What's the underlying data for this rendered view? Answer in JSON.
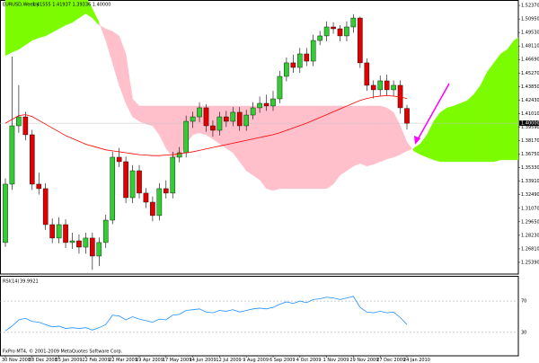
{
  "chart_data": {
    "type": "candlestick",
    "title": "EURUSD,Weekly",
    "subtitle": "1.41555 1.41937 1.39336 1.40000",
    "footer": "FxPro MT4, © 2001-2009 MetaQuotes Software Corp.",
    "categories": [
      "30 Nov 2008",
      null,
      null,
      null,
      "28 Dec 2008",
      null,
      null,
      null,
      "25 Jan 2009",
      null,
      null,
      null,
      "22 Feb 2009",
      null,
      null,
      null,
      "22 Mar 2009",
      null,
      null,
      null,
      "19 Apr 2009",
      null,
      null,
      null,
      "17 May 2009",
      null,
      null,
      null,
      "14 Jun 2009",
      null,
      null,
      null,
      "12 Jul 2009",
      null,
      null,
      null,
      "9 Aug 2009",
      null,
      null,
      null,
      "6 Sep 2009",
      null,
      null,
      null,
      "4 Oct 2009",
      null,
      null,
      null,
      "1 Nov 2009",
      null,
      null,
      null,
      "29 Nov 2009",
      null,
      null,
      null,
      "27 Dec 2009",
      null,
      null,
      null,
      "24 Jan 2010",
      null,
      null,
      null,
      null,
      null,
      null,
      null,
      null,
      null,
      null,
      null,
      null,
      null,
      null,
      null,
      null,
      null,
      null,
      null,
      null
    ],
    "open": [
      1.2747,
      1.336,
      1.3973,
      1.4067,
      1.3879,
      1.336,
      1.3313,
      1.2935,
      1.2794,
      1.2935,
      1.2747,
      1.2765,
      1.2699,
      1.2794,
      1.2605,
      1.2747,
      1.2982,
      1.3643,
      1.3596,
      1.3218,
      1.3501,
      1.3266,
      1.3171,
      1.303,
      1.3313,
      1.3266,
      1.3643,
      1.369,
      1.402,
      1.4067,
      1.4162,
      1.3973,
      1.3926,
      1.4067,
      1.402,
      1.4115,
      1.3973,
      1.4086,
      1.4162,
      1.4209,
      1.4181,
      1.4256,
      1.4492,
      1.4634,
      1.4586,
      1.4728,
      1.4652,
      1.4869,
      1.4917,
      1.5011,
      1.4992,
      1.4917,
      1.5011,
      1.5105,
      1.4634,
      1.4398,
      1.4351,
      1.4445,
      1.4351,
      1.4398,
      1.41555,
      null,
      null,
      null,
      null,
      null,
      null,
      null,
      null,
      null,
      null,
      null,
      null,
      null,
      null,
      null,
      null,
      null,
      null,
      null,
      null
    ],
    "high": [
      1.342,
      1.47,
      1.44,
      1.412,
      1.393,
      1.348,
      1.337,
      1.3,
      1.301,
      1.299,
      1.285,
      1.283,
      1.285,
      1.285,
      1.28,
      1.304,
      1.37,
      1.374,
      1.365,
      1.356,
      1.356,
      1.332,
      1.323,
      1.337,
      1.34,
      1.37,
      1.375,
      1.408,
      1.412,
      1.422,
      1.42,
      1.403,
      1.412,
      1.413,
      1.417,
      1.417,
      1.414,
      1.422,
      1.428,
      1.43,
      1.434,
      1.455,
      1.469,
      1.472,
      1.479,
      1.479,
      1.493,
      1.497,
      1.507,
      1.506,
      1.503,
      1.507,
      1.5145,
      1.512,
      1.468,
      1.445,
      1.45,
      1.451,
      1.445,
      1.445,
      1.41937,
      null,
      null,
      null,
      null,
      null,
      null,
      null,
      null,
      null,
      null,
      null,
      null,
      null,
      null,
      null,
      null,
      null,
      null,
      null,
      null
    ],
    "low": [
      1.27,
      1.33,
      1.39,
      1.382,
      1.33,
      1.325,
      1.288,
      1.274,
      1.274,
      1.269,
      1.268,
      1.263,
      1.263,
      1.246,
      1.25,
      1.269,
      1.294,
      1.354,
      1.316,
      1.316,
      1.321,
      1.311,
      1.297,
      1.298,
      1.321,
      1.321,
      1.359,
      1.364,
      1.395,
      1.401,
      1.391,
      1.386,
      1.387,
      1.396,
      1.397,
      1.392,
      1.392,
      1.404,
      1.411,
      1.413,
      1.413,
      1.421,
      1.444,
      1.453,
      1.453,
      1.46,
      1.46,
      1.482,
      1.486,
      1.494,
      1.486,
      1.486,
      1.495,
      1.458,
      1.434,
      1.426,
      1.429,
      1.429,
      1.429,
      1.41,
      1.39336,
      null,
      null,
      null,
      null,
      null,
      null,
      null,
      null,
      null,
      null,
      null,
      null,
      null,
      null,
      null,
      null,
      null,
      null,
      null,
      null
    ],
    "close": [
      1.336,
      1.3973,
      1.4067,
      1.3879,
      1.336,
      1.3313,
      1.2935,
      1.2794,
      1.2935,
      1.2747,
      1.2765,
      1.2699,
      1.2794,
      1.2605,
      1.2747,
      1.2982,
      1.3643,
      1.3596,
      1.3218,
      1.3501,
      1.3266,
      1.3171,
      1.303,
      1.3313,
      1.3266,
      1.3643,
      1.369,
      1.402,
      1.4067,
      1.4162,
      1.3973,
      1.3926,
      1.4067,
      1.402,
      1.4115,
      1.3973,
      1.4086,
      1.4162,
      1.4209,
      1.4181,
      1.4256,
      1.4492,
      1.4634,
      1.4586,
      1.4728,
      1.4652,
      1.4869,
      1.4917,
      1.5011,
      1.4992,
      1.4917,
      1.5011,
      1.5105,
      1.4634,
      1.4398,
      1.4351,
      1.4445,
      1.4351,
      1.4398,
      1.4162,
      1.4,
      null,
      null,
      null,
      null,
      null,
      null,
      null,
      null,
      null,
      null,
      null,
      null,
      null,
      null,
      null,
      null,
      null,
      null,
      null,
      null
    ],
    "up_color": "#32cd32",
    "down_color": "#e00000",
    "ma": {
      "color": "#ff0000",
      "values": [
        1.4,
        1.404,
        1.408,
        1.409,
        1.407,
        1.403,
        1.399,
        1.395,
        1.391,
        1.387,
        1.384,
        1.381,
        1.378,
        1.376,
        1.374,
        1.372,
        1.371,
        1.37,
        1.369,
        1.368,
        1.367,
        1.3665,
        1.366,
        1.366,
        1.3665,
        1.367,
        1.368,
        1.369,
        1.37,
        1.3715,
        1.373,
        1.3745,
        1.376,
        1.3775,
        1.379,
        1.3805,
        1.382,
        1.3835,
        1.385,
        1.3865,
        1.388,
        1.39,
        1.3925,
        1.395,
        1.3975,
        1.4,
        1.403,
        1.406,
        1.409,
        1.412,
        1.415,
        1.418,
        1.421,
        1.424,
        1.426,
        1.4275,
        1.4285,
        1.429,
        1.4285,
        1.4275,
        1.426,
        null,
        null,
        null,
        null,
        null,
        null,
        null,
        null,
        null,
        null,
        null,
        null,
        null,
        null,
        null,
        null,
        null,
        null,
        null,
        null
      ]
    },
    "cloud": {
      "up_color": "#7cfc00",
      "down_color": "#ffc0cb",
      "span_a": [
        1.5483,
        1.5483,
        1.5483,
        1.5483,
        1.5483,
        1.5483,
        1.5483,
        1.5464,
        1.5436,
        1.5407,
        1.5388,
        1.5369,
        1.5341,
        1.52,
        1.5058,
        1.4869,
        1.4634,
        1.4398,
        1.4209,
        1.4067,
        1.402,
        1.3992,
        1.3973,
        1.3879,
        1.3737,
        1.3643,
        1.3643,
        1.3784,
        1.3879,
        1.3898,
        1.3879,
        1.3832,
        1.3784,
        1.3737,
        1.369,
        1.3596,
        1.3501,
        1.3454,
        1.3407,
        1.3313,
        1.3294,
        1.3313,
        1.3313,
        1.3313,
        1.3313,
        1.3313,
        1.3313,
        1.3313,
        1.3313,
        1.336,
        1.3454,
        1.3501,
        1.3549,
        1.3577,
        1.3549,
        1.3567,
        1.3596,
        1.3624,
        1.3643,
        1.3671,
        1.3709,
        1.3737,
        1.3784,
        1.3879,
        1.402,
        1.4115,
        1.4162,
        1.4181,
        1.4209,
        1.4237,
        1.4303,
        1.4398,
        1.4539,
        1.4634,
        1.4728,
        1.4775,
        1.4869,
        1.4917,
        1.5011,
        1.5058,
        1.5105
      ],
      "span_b": [
        1.4709,
        1.4747,
        1.4775,
        1.4822,
        1.4869,
        1.4898,
        1.4917,
        1.4954,
        1.4992,
        1.503,
        1.5058,
        1.5105,
        1.5152,
        1.5105,
        1.503,
        1.4992,
        1.4964,
        1.4917,
        1.4728,
        1.4256,
        1.4181,
        1.4181,
        1.4181,
        1.4181,
        1.4181,
        1.4181,
        1.4181,
        1.4181,
        1.4181,
        1.4181,
        1.4181,
        1.4181,
        1.4181,
        1.4181,
        1.4181,
        1.4181,
        1.4181,
        1.4181,
        1.4181,
        1.4181,
        1.4181,
        1.4181,
        1.4181,
        1.4181,
        1.4181,
        1.4181,
        1.4181,
        1.4181,
        1.4181,
        1.4181,
        1.4181,
        1.4181,
        1.4181,
        1.4181,
        1.4181,
        1.4181,
        1.4181,
        1.4162,
        1.4115,
        1.3973,
        1.3803,
        1.3709,
        1.3671,
        1.3643,
        1.3615,
        1.3596,
        1.3596,
        1.3596,
        1.3596,
        1.3596,
        1.3596,
        1.3596,
        1.3596,
        1.3596,
        1.3615,
        1.3615,
        1.3615,
        1.3615,
        1.3615,
        1.3615,
        1.3615
      ]
    },
    "ylim": [
      1.2416,
      1.5294
    ],
    "yticks": [
      {
        "value": 1.5237,
        "label": "1.52370"
      },
      {
        "value": 1.5095,
        "label": "1.50950"
      },
      {
        "value": 1.4953,
        "label": "1.49530"
      },
      {
        "value": 1.4811,
        "label": "1.48110"
      },
      {
        "value": 1.4669,
        "label": "1.46690"
      },
      {
        "value": 1.4527,
        "label": "1.45270"
      },
      {
        "value": 1.4385,
        "label": "1.43850"
      },
      {
        "value": 1.4243,
        "label": "1.42430"
      },
      {
        "value": 1.4101,
        "label": "1.41010"
      },
      {
        "value": 1.3959,
        "label": "1.39590"
      },
      {
        "value": 1.3817,
        "label": "1.38170"
      },
      {
        "value": 1.3675,
        "label": "1.36750"
      },
      {
        "value": 1.3533,
        "label": "1.35330"
      },
      {
        "value": 1.3391,
        "label": "1.33910"
      },
      {
        "value": 1.3249,
        "label": "1.32490"
      },
      {
        "value": 1.3107,
        "label": "1.31070"
      },
      {
        "value": 1.2965,
        "label": "1.29650"
      },
      {
        "value": 1.2823,
        "label": "1.28230"
      },
      {
        "value": 1.2681,
        "label": "1.26810"
      },
      {
        "value": 1.2539,
        "label": "1.25390"
      }
    ],
    "last_price": {
      "value": 1.4,
      "label": "1.40000"
    },
    "rsi": {
      "name": "RSI(14)",
      "color": "#1e90ff",
      "ylim": [
        0,
        100
      ],
      "yticks": [
        30,
        70
      ],
      "values": [
        32,
        38,
        46,
        48,
        44,
        43,
        40,
        37,
        38,
        35,
        36,
        35,
        36,
        33,
        36,
        40,
        52,
        51,
        46,
        50,
        47,
        45,
        43,
        47,
        46,
        52,
        53,
        58,
        59,
        60,
        56,
        55,
        58,
        57,
        59,
        56,
        58,
        60,
        61,
        60,
        62,
        66,
        69,
        67,
        70,
        68,
        72,
        73,
        75,
        74,
        72,
        74,
        76,
        62,
        56,
        55,
        57,
        55,
        56,
        49,
        39.9921,
        null,
        null,
        null,
        null,
        null,
        null,
        null,
        null,
        null,
        null,
        null,
        null,
        null,
        null,
        null,
        null,
        null,
        null,
        null,
        null
      ]
    }
  }
}
